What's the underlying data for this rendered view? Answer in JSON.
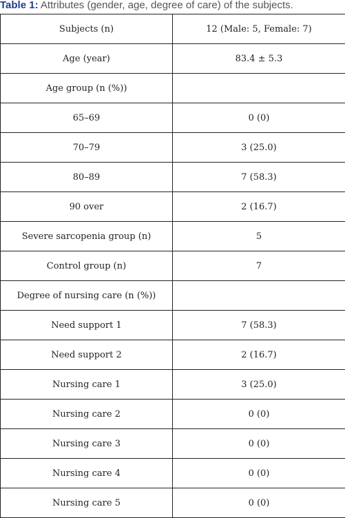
{
  "caption": {
    "label": "Table 1:",
    "text": " Attributes (gender, age, degree of care) of the subjects."
  },
  "rows": [
    {
      "attribute": "Subjects (n)",
      "value": "12 (Male: 5, Female: 7)"
    },
    {
      "attribute": "Age (year)",
      "value": "83.4 ± 5.3"
    },
    {
      "attribute": "Age group (n (%))",
      "value": ""
    },
    {
      "attribute": "65–69",
      "value": "0 (0)"
    },
    {
      "attribute": "70–79",
      "value": "3 (25.0)"
    },
    {
      "attribute": "80–89",
      "value": "7 (58.3)"
    },
    {
      "attribute": "90 over",
      "value": "2 (16.7)"
    },
    {
      "attribute": "Severe sarcopenia group (n)",
      "value": "5"
    },
    {
      "attribute": "Control group (n)",
      "value": "7"
    },
    {
      "attribute": "Degree of nursing care (n (%))",
      "value": ""
    },
    {
      "attribute": "Need support 1",
      "value": "7 (58.3)"
    },
    {
      "attribute": "Need support 2",
      "value": "2 (16.7)"
    },
    {
      "attribute": "Nursing care 1",
      "value": "3 (25.0)"
    },
    {
      "attribute": "Nursing care 2",
      "value": "0 (0)"
    },
    {
      "attribute": "Nursing care 3",
      "value": "0 (0)"
    },
    {
      "attribute": "Nursing care 4",
      "value": "0 (0)"
    },
    {
      "attribute": "Nursing care 5",
      "value": "0 (0)"
    }
  ]
}
